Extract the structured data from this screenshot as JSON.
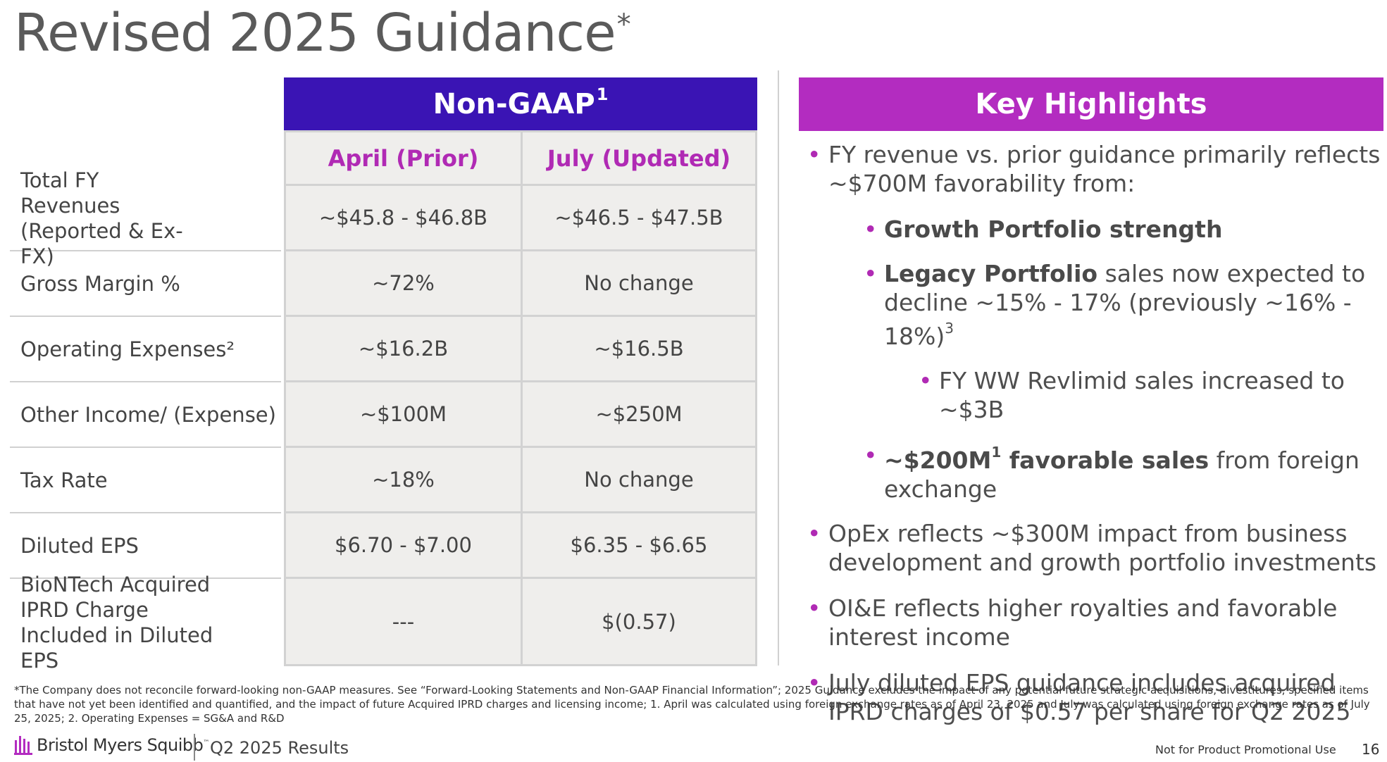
{
  "title": "Revised 2025 Guidance",
  "title_mark": "*",
  "table": {
    "band_label": "Non-GAAP",
    "band_sup": "1",
    "columns": [
      "April (Prior)",
      "July (Updated)"
    ],
    "rows": [
      {
        "label": "Total FY Revenues (Reported & Ex-FX)",
        "april": "~$45.8 - $46.8B",
        "july": "~$46.5 - $47.5B"
      },
      {
        "label": "Gross Margin %",
        "april": "~72%",
        "july": "No change"
      },
      {
        "label": "Operating Expenses²",
        "april": "~$16.2B",
        "july": "~$16.5B"
      },
      {
        "label": "Other Income/ (Expense)",
        "april": "~$100M",
        "july": "~$250M"
      },
      {
        "label": "Tax Rate",
        "april": "~18%",
        "july": "No change"
      },
      {
        "label": "Diluted EPS",
        "april": "$6.70 - $7.00",
        "july": "$6.35 - $6.65"
      },
      {
        "label": "BioNTech Acquired IPRD Charge Included in Diluted EPS",
        "april": "---",
        "july": "$(0.57)"
      }
    ]
  },
  "highlights": {
    "header": "Key Highlights",
    "b1": "FY revenue vs. prior guidance primarily reflects ~$700M favorability from:",
    "b2_bold": "Growth Portfolio strength",
    "b3_bold": "Legacy Portfolio",
    "b3_rest": " sales now expected to decline ~15% - 17% (previously ~16% - 18%)",
    "b3_sup": "3",
    "b4": "FY WW Revlimid sales increased to ~$3B",
    "b5_bold_a": "~$200M",
    "b5_sup": "1",
    "b5_bold_b": " favorable sales",
    "b5_rest": " from foreign exchange",
    "b6": "OpEx reflects ~$300M impact from business development and growth portfolio investments",
    "b7": "OI&E reflects higher royalties and favorable interest income",
    "b8": "July diluted EPS guidance includes acquired IPRD charges of $0.57 per share for Q2 2025"
  },
  "footnote": "*The Company does not reconcile forward-looking non-GAAP measures. See “Forward-Looking Statements and Non-GAAP Financial Information”; 2025 Guidance excludes the impact of any potential future strategic acquisitions, divestitures, specified items that have not yet been identified and quantified, and the impact of future Acquired IPRD charges and licensing income; 1. April was calculated using foreign exchange rates as of April 23, 2025 and July was calculated using foreign exchange rates as of July 25, 2025; 2. Operating Expenses = SG&A and R&D",
  "footer": {
    "brand": "Bristol Myers Squibb",
    "brand_tm": "™",
    "logo_icon": "bms-logo-icon",
    "results": "Q2 2025 Results",
    "promo": "Not for Product Promotional Use",
    "page": "16"
  },
  "colors": {
    "non_gaap_band": "#3a14b4",
    "highlight_band": "#b32cc0",
    "accent": "#b02ab4",
    "cell_bg": "#efeeec"
  }
}
